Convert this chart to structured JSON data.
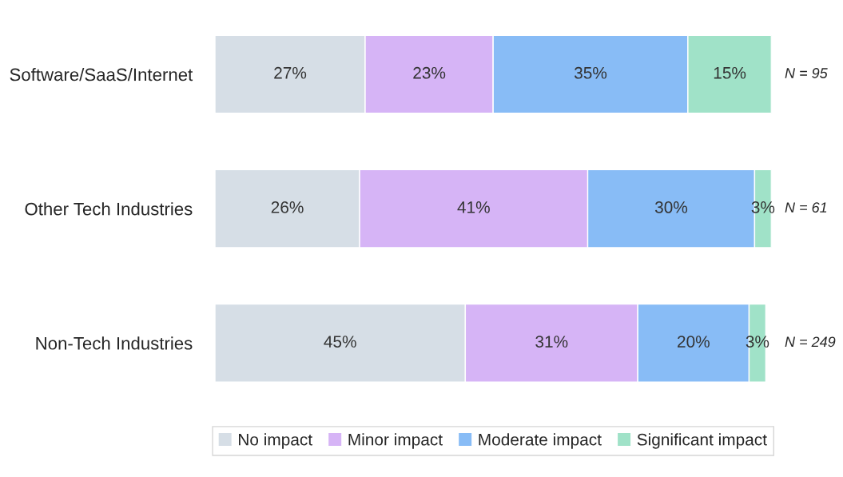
{
  "chart_data": {
    "type": "bar",
    "orientation": "horizontal",
    "stacked": true,
    "categories": [
      "Software/SaaS/Internet",
      "Other Tech Industries",
      "Non-Tech Industries"
    ],
    "series": [
      {
        "name": "No impact",
        "color": "#d6dee6",
        "values": [
          27,
          26,
          45
        ],
        "value_labels": [
          "27%",
          "26%",
          "45%"
        ]
      },
      {
        "name": "Minor impact",
        "color": "#d6b4f6",
        "values": [
          23,
          41,
          31
        ],
        "value_labels": [
          "23%",
          "41%",
          "31%"
        ]
      },
      {
        "name": "Moderate impact",
        "color": "#88bcf6",
        "values": [
          35,
          30,
          20
        ],
        "value_labels": [
          "35%",
          "30%",
          "20%"
        ]
      },
      {
        "name": "Significant impact",
        "color": "#a0e2c8",
        "values": [
          15,
          3,
          3
        ],
        "value_labels": [
          "15%",
          "3%",
          "3%"
        ]
      }
    ],
    "xlim": [
      0,
      100
    ],
    "tick_labels": "y",
    "grid": false,
    "legend": "bottom",
    "annotations": [
      "N = 95",
      "N = 61",
      "N = 249"
    ]
  }
}
